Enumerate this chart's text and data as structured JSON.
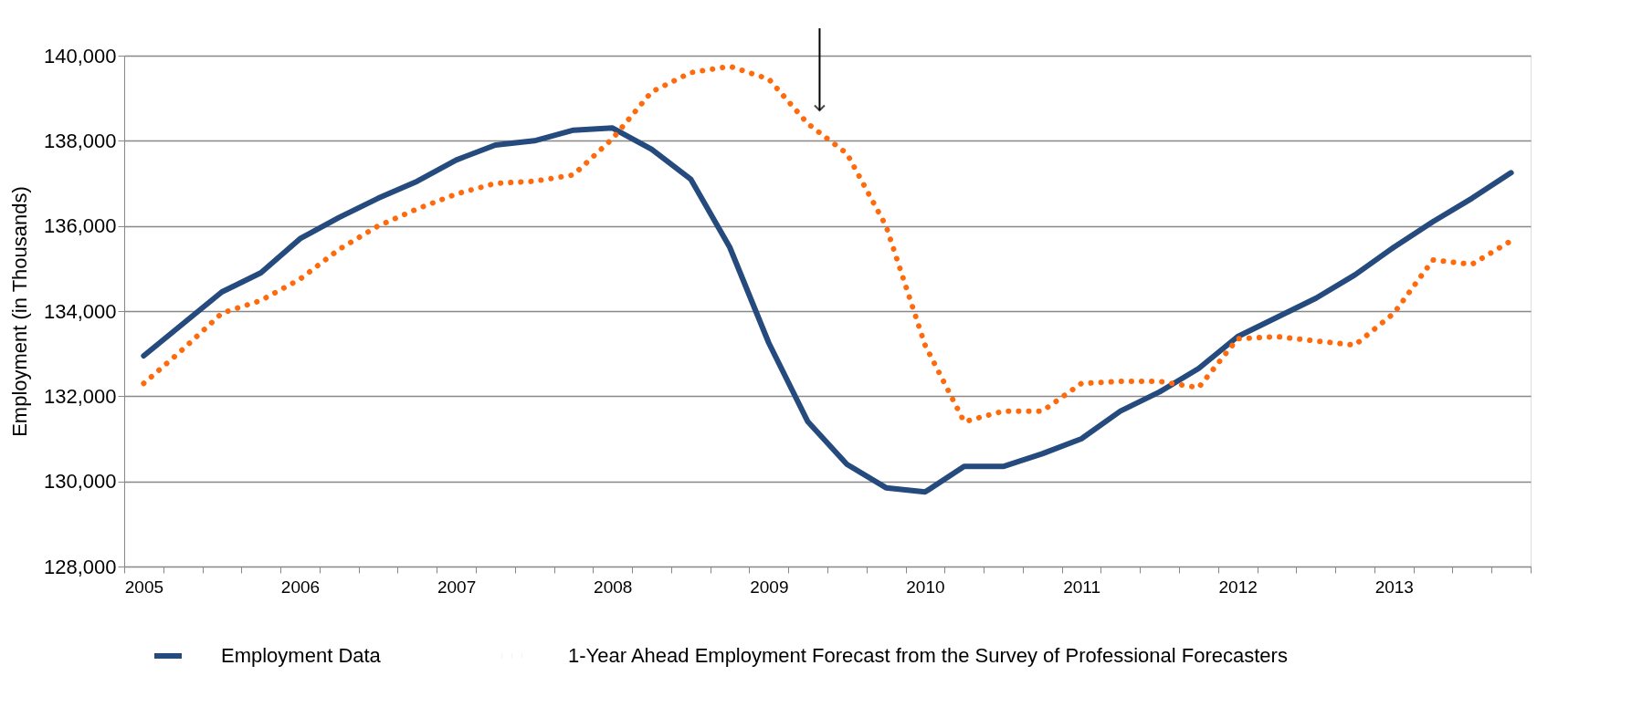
{
  "chart_data": {
    "type": "line",
    "ylabel": "Employment (in Thousands)",
    "categories": [
      "2005",
      null,
      null,
      null,
      "2006",
      null,
      null,
      null,
      "2007",
      null,
      null,
      null,
      "2008",
      null,
      null,
      null,
      "2009",
      null,
      null,
      null,
      "2010",
      null,
      null,
      null,
      "2011",
      null,
      null,
      null,
      "2012",
      null,
      null,
      null,
      "2013",
      null,
      null,
      null
    ],
    "series": [
      {
        "name": "Employment Data",
        "color": "#254a7d",
        "line_style": "solid",
        "values": [
          132950,
          133700,
          134450,
          134900,
          135700,
          136200,
          136650,
          137050,
          137550,
          137900,
          138000,
          138250,
          138300,
          137800,
          137100,
          135500,
          133250,
          131400,
          130400,
          129850,
          129750,
          130350,
          130350,
          130650,
          131000,
          131650,
          132100,
          132650,
          133400,
          133850,
          134300,
          134850,
          135500,
          136100,
          136650,
          137250
        ]
      },
      {
        "name": "1-Year Ahead Employment Forecast from the Survey of Professional Forecasters",
        "color": "#ff6a0d",
        "line_style": "dotted",
        "values": [
          132300,
          133100,
          133950,
          134250,
          134750,
          135450,
          136000,
          136400,
          136750,
          137000,
          137050,
          137200,
          138050,
          139150,
          139600,
          139750,
          139450,
          138400,
          137700,
          136000,
          133200,
          131400,
          131650,
          131650,
          132300,
          132350,
          132350,
          132200,
          133350,
          133400,
          133300,
          133200,
          133950,
          135200,
          135100,
          135650
        ]
      }
    ],
    "ylim": [
      128000,
      140000
    ],
    "yticks": [
      {
        "value": 128000,
        "label": "128,000"
      },
      {
        "value": 130000,
        "label": "130,000"
      },
      {
        "value": 132000,
        "label": "132,000"
      },
      {
        "value": 134000,
        "label": "134,000"
      },
      {
        "value": 136000,
        "label": "136,000"
      },
      {
        "value": 138000,
        "label": "138,000"
      },
      {
        "value": 140000,
        "label": "140,000"
      }
    ],
    "grid": "y",
    "legend": "bottom",
    "marker": "none"
  }
}
